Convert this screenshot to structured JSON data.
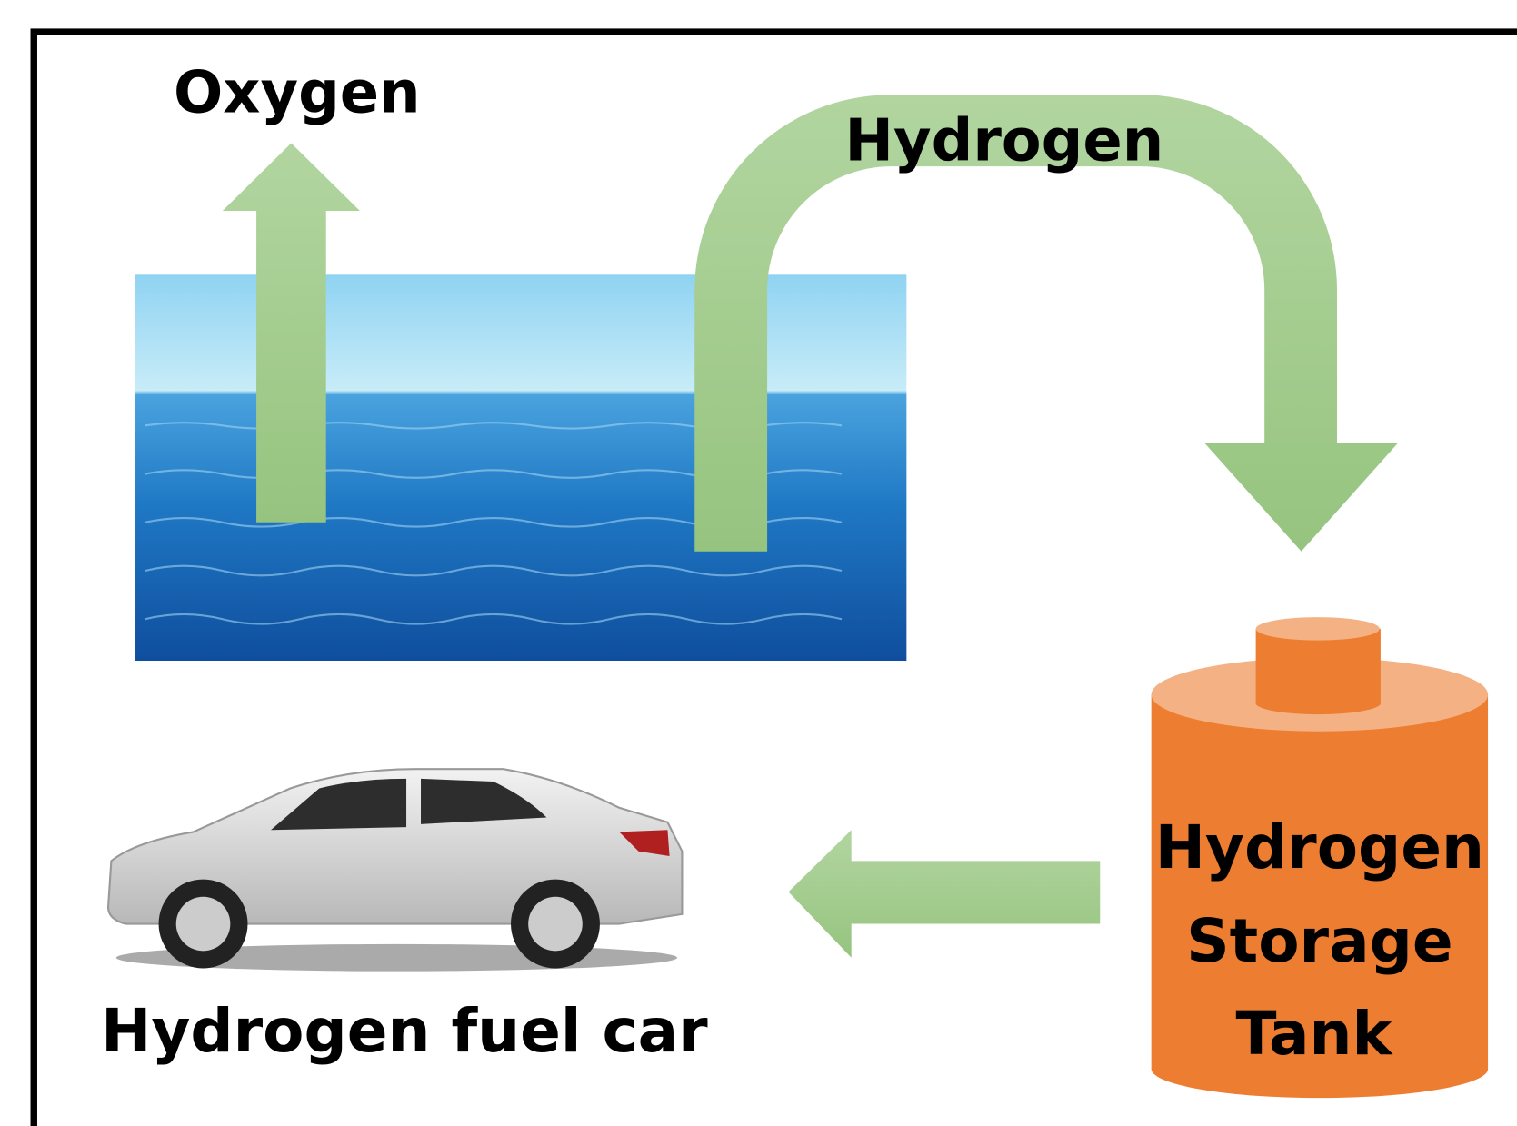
{
  "oxygen_label": "Oxygen",
  "hydrogen_label": "Hydrogen",
  "car_label": "Hydrogen fuel car",
  "tank_label": [
    "Hydrogen",
    "Storage",
    "Tank"
  ]
}
